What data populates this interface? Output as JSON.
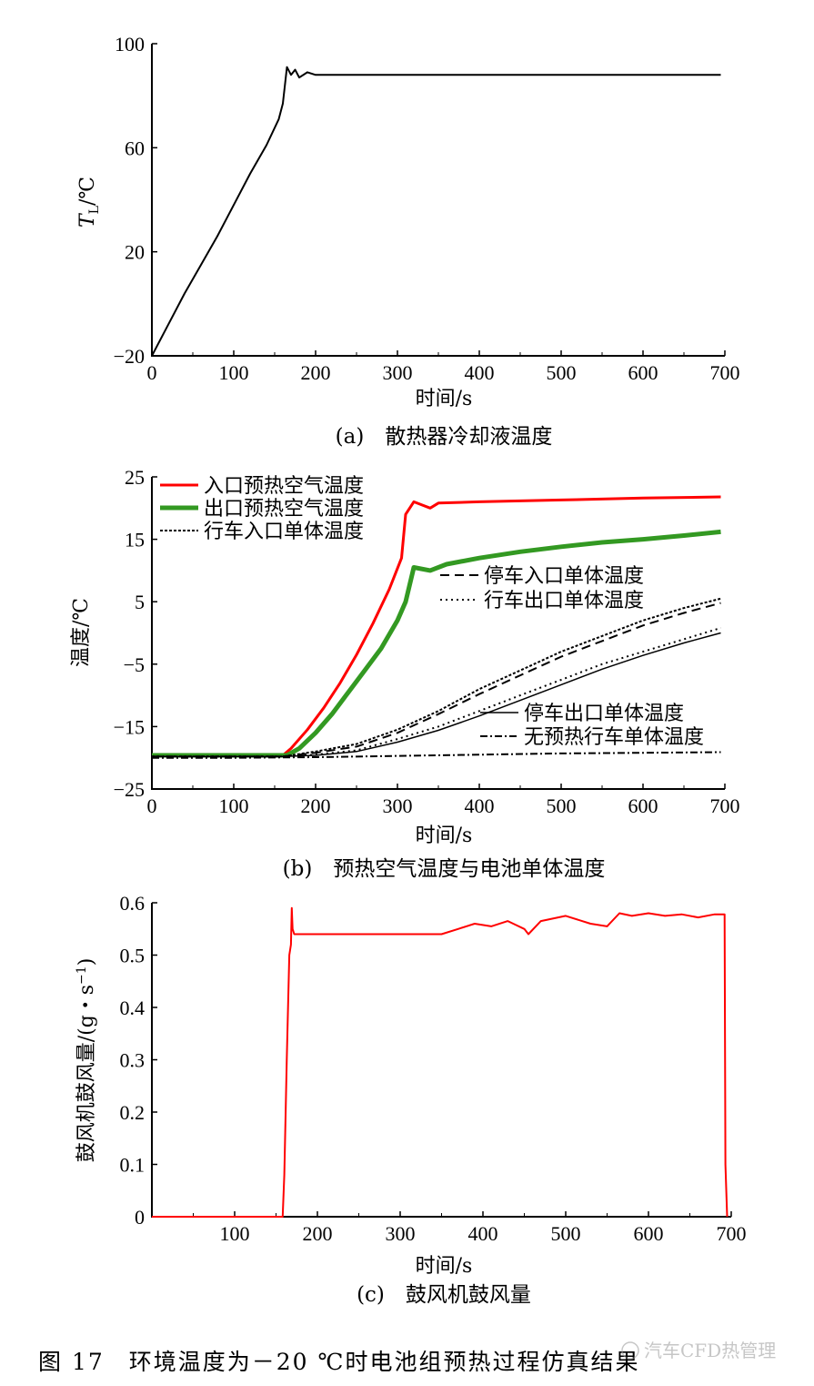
{
  "figure_caption": "图 17　环境温度为－20 ℃时电池组预热过程仿真结果",
  "watermark": "汽车CFD热管理",
  "chart_data": [
    {
      "type": "line",
      "caption": "(a)　散热器冷却液温度",
      "xlabel": "时间/s",
      "ylabel": "T_L/℃",
      "ylabel_main": "T",
      "ylabel_sub": "L",
      "ylabel_unit": "/℃",
      "xlim": [
        0,
        700
      ],
      "ylim": [
        -20,
        100
      ],
      "xticks": [
        "0",
        "100",
        "200",
        "300",
        "400",
        "500",
        "600",
        "700"
      ],
      "yticks": [
        "−20",
        "20",
        "60",
        "100"
      ],
      "ytick_values": [
        -20,
        20,
        60,
        100
      ],
      "grid": false,
      "series": [
        {
          "color": "#000000",
          "x": [
            0,
            20,
            40,
            60,
            80,
            100,
            120,
            140,
            155,
            160,
            165,
            170,
            175,
            180,
            190,
            200,
            300,
            400,
            500,
            600,
            695
          ],
          "y": [
            -20,
            -8,
            4,
            15,
            26,
            38,
            50,
            61,
            71,
            77,
            91,
            88,
            90,
            87,
            89,
            88,
            88,
            88,
            88,
            88,
            88
          ]
        }
      ]
    },
    {
      "type": "line",
      "caption": "(b)　预热空气温度与电池单体温度",
      "xlabel": "时间/s",
      "ylabel": "温度/℃",
      "xlim": [
        0,
        700
      ],
      "ylim": [
        -25,
        25
      ],
      "xticks": [
        "0",
        "100",
        "200",
        "300",
        "400",
        "500",
        "600",
        "700"
      ],
      "yticks": [
        "−25",
        "−15",
        "−5",
        "5",
        "15",
        "25"
      ],
      "ytick_values": [
        -25,
        -15,
        -5,
        5,
        15,
        25
      ],
      "grid": false,
      "legend_top": [
        "入口预热空气温度",
        "出口预热空气温度",
        "行车入口单体温度"
      ],
      "legend_mid": [
        "停车入口单体温度",
        "行车出口单体温度"
      ],
      "legend_bottom": [
        "停车出口单体温度",
        "无预热行车单体温度"
      ],
      "series": [
        {
          "name": "入口预热空气温度",
          "color": "#ff0000",
          "width": 3,
          "dash": "",
          "x": [
            0,
            160,
            170,
            190,
            210,
            230,
            250,
            270,
            290,
            305,
            310,
            320,
            330,
            340,
            350,
            400,
            500,
            600,
            695
          ],
          "y": [
            -19.6,
            -19.6,
            -18.5,
            -15.5,
            -12,
            -8,
            -3.5,
            1.5,
            7,
            12,
            19,
            21,
            20.5,
            20,
            20.8,
            21,
            21.3,
            21.6,
            21.8
          ]
        },
        {
          "name": "出口预热空气温度",
          "color": "#339922",
          "width": 5,
          "dash": "",
          "x": [
            0,
            165,
            180,
            200,
            220,
            240,
            260,
            280,
            300,
            310,
            320,
            340,
            360,
            400,
            450,
            500,
            550,
            600,
            650,
            695
          ],
          "y": [
            -19.6,
            -19.6,
            -18.5,
            -16,
            -13,
            -9.5,
            -6,
            -2.5,
            2,
            5,
            10.5,
            10,
            11,
            12,
            13,
            13.8,
            14.5,
            15,
            15.6,
            16.2
          ]
        },
        {
          "name": "行车入口单体温度",
          "color": "#000000",
          "width": 2,
          "dash": "3,2",
          "x": [
            0,
            160,
            200,
            250,
            300,
            350,
            400,
            450,
            500,
            550,
            600,
            650,
            695
          ],
          "y": [
            -19.8,
            -19.8,
            -19,
            -17.8,
            -15.5,
            -12.5,
            -9,
            -6,
            -3,
            -0.5,
            2,
            4,
            5.5
          ]
        },
        {
          "name": "停车入口单体温度",
          "color": "#000000",
          "width": 2,
          "dash": "10,6",
          "x": [
            0,
            160,
            200,
            250,
            300,
            350,
            400,
            450,
            500,
            550,
            600,
            650,
            695
          ],
          "y": [
            -19.8,
            -19.8,
            -19.2,
            -18.2,
            -16,
            -13,
            -9.8,
            -6.8,
            -3.8,
            -1.3,
            1.2,
            3.2,
            4.8
          ]
        },
        {
          "name": "行车出口单体温度",
          "color": "#000000",
          "width": 2,
          "dash": "2,4",
          "x": [
            0,
            160,
            200,
            250,
            300,
            350,
            400,
            450,
            500,
            550,
            600,
            650,
            695
          ],
          "y": [
            -19.8,
            -19.8,
            -19.5,
            -18.8,
            -17,
            -15,
            -12.5,
            -10,
            -7.5,
            -5,
            -3,
            -1,
            0.8
          ]
        },
        {
          "name": "停车出口单体温度",
          "color": "#000000",
          "width": 1.5,
          "dash": "",
          "x": [
            0,
            160,
            200,
            250,
            300,
            350,
            400,
            450,
            500,
            550,
            600,
            650,
            695
          ],
          "y": [
            -19.8,
            -19.8,
            -19.6,
            -19,
            -17.5,
            -15.6,
            -13.3,
            -10.8,
            -8.3,
            -5.8,
            -3.6,
            -1.6,
            0
          ]
        },
        {
          "name": "无预热行车单体温度",
          "color": "#000000",
          "width": 2,
          "dash": "8,3,2,3",
          "x": [
            0,
            100,
            200,
            300,
            400,
            500,
            600,
            695
          ],
          "y": [
            -20,
            -20,
            -19.9,
            -19.7,
            -19.5,
            -19.3,
            -19.2,
            -19.1
          ]
        }
      ]
    },
    {
      "type": "line",
      "caption": "(c)　鼓风机鼓风量",
      "xlabel": "时间/s",
      "ylabel": "鼓风机鼓风量/(g・s⁻¹)",
      "ylabel_main": "鼓风机鼓风量/(g・s",
      "ylabel_sup": "−1",
      "ylabel_close": ")",
      "xlim": [
        0,
        700
      ],
      "ylim": [
        0,
        0.6
      ],
      "xticks": [
        "100",
        "200",
        "300",
        "400",
        "500",
        "600",
        "700"
      ],
      "xtick_values": [
        100,
        200,
        300,
        400,
        500,
        600,
        700
      ],
      "yticks": [
        "0",
        "0.1",
        "0.2",
        "0.3",
        "0.4",
        "0.5",
        "0.6"
      ],
      "ytick_values": [
        0,
        0.1,
        0.2,
        0.3,
        0.4,
        0.5,
        0.6
      ],
      "grid": false,
      "series": [
        {
          "color": "#ff0000",
          "x": [
            0,
            158,
            160,
            163,
            166,
            168,
            169,
            170,
            172,
            175,
            200,
            300,
            350,
            370,
            390,
            410,
            430,
            450,
            455,
            470,
            500,
            530,
            550,
            565,
            580,
            600,
            620,
            640,
            660,
            680,
            692,
            693,
            695
          ],
          "y": [
            0,
            0,
            0.08,
            0.3,
            0.5,
            0.52,
            0.59,
            0.55,
            0.54,
            0.54,
            0.54,
            0.54,
            0.54,
            0.55,
            0.56,
            0.555,
            0.565,
            0.55,
            0.54,
            0.565,
            0.575,
            0.56,
            0.555,
            0.58,
            0.575,
            0.58,
            0.575,
            0.578,
            0.572,
            0.578,
            0.578,
            0.1,
            0
          ]
        }
      ]
    }
  ]
}
